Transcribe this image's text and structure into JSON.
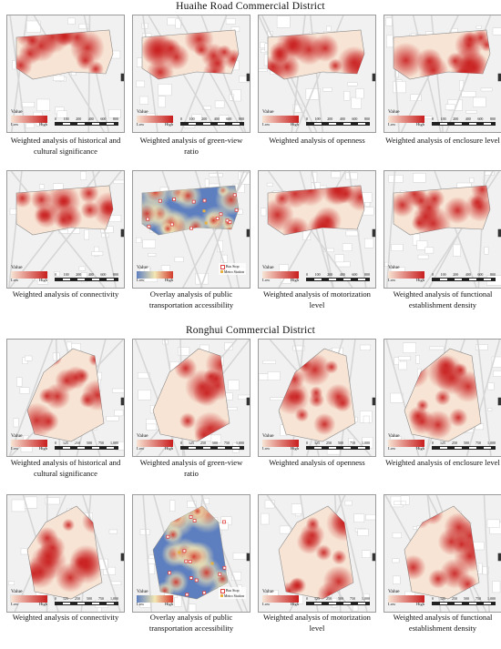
{
  "sections": [
    {
      "title": "Huaihe Road Commercial District"
    },
    {
      "title": "Ronghui Commercial District"
    }
  ],
  "panels": [
    {
      "caption_lines": [
        "Weighted analysis of historical and",
        "cultural significance"
      ],
      "scale": [
        "0",
        "100",
        "200",
        "400",
        "600",
        "800"
      ],
      "style": "heat"
    },
    {
      "caption_lines": [
        "Weighted analysis of green-view",
        "ratio"
      ],
      "scale": [
        "0",
        "100",
        "200",
        "400",
        "600",
        "800"
      ],
      "style": "heat"
    },
    {
      "caption_lines": [
        "Weighted analysis of openness"
      ],
      "scale": [
        "0",
        "100",
        "200",
        "400",
        "600",
        "800"
      ],
      "style": "heat"
    },
    {
      "caption_lines": [
        "Weighted analysis of enclosure level"
      ],
      "scale": [
        "0",
        "100",
        "200",
        "400",
        "600",
        "800"
      ],
      "style": "heat"
    },
    {
      "caption_lines": [
        "Weighted analysis of connectivity"
      ],
      "scale": [
        "0",
        "100",
        "200",
        "400",
        "600",
        "800"
      ],
      "style": "heat"
    },
    {
      "caption_lines": [
        "Overlay analysis of public",
        "transportation accessibility"
      ],
      "scale": [],
      "style": "overlay"
    },
    {
      "caption_lines": [
        "Weighted analysis of motorization",
        "level"
      ],
      "scale": [
        "0",
        "100",
        "200",
        "400",
        "600",
        "800"
      ],
      "style": "heat"
    },
    {
      "caption_lines": [
        "Weighted analysis of functional",
        "establishment density"
      ],
      "scale": [
        "0",
        "100",
        "200",
        "400",
        "600",
        "800"
      ],
      "style": "heat"
    },
    {
      "caption_lines": [
        "Weighted analysis of historical and",
        "cultural significance"
      ],
      "scale": [
        "0",
        "125",
        "250",
        "500",
        "750",
        "1,000"
      ],
      "style": "heat"
    },
    {
      "caption_lines": [
        "Weighted analysis of green-view",
        "ratio"
      ],
      "scale": [
        "0",
        "125",
        "250",
        "500",
        "750",
        "1,000"
      ],
      "style": "heat"
    },
    {
      "caption_lines": [
        "Weighted analysis of openness"
      ],
      "scale": [
        "0",
        "125",
        "250",
        "500",
        "750",
        "1,000"
      ],
      "style": "heat"
    },
    {
      "caption_lines": [
        "Weighted analysis of enclosure level"
      ],
      "scale": [
        "0",
        "125",
        "250",
        "500",
        "750",
        "1,000"
      ],
      "style": "heat"
    },
    {
      "caption_lines": [
        "Weighted analysis of connectivity"
      ],
      "scale": [
        "0",
        "125",
        "250",
        "500",
        "750",
        "1,000"
      ],
      "style": "heat"
    },
    {
      "caption_lines": [
        "Overlay analysis of public",
        "transportation accessibility"
      ],
      "scale": [],
      "style": "overlay"
    },
    {
      "caption_lines": [
        "Weighted analysis of motorization",
        "level"
      ],
      "scale": [
        "0",
        "125",
        "250",
        "500",
        "750",
        "1,000"
      ],
      "style": "heat"
    },
    {
      "caption_lines": [
        "Weighted analysis of functional",
        "establishment density"
      ],
      "scale": [
        "0",
        "125",
        "250",
        "500",
        "750",
        "1,000"
      ],
      "style": "heat"
    }
  ],
  "legend": {
    "title": "Value",
    "low": "Low",
    "high": "High"
  },
  "stops_legend": {
    "bus": "Bus Stop",
    "metro": "Metro Station"
  },
  "colors": {
    "heat_low": "#f7e4d4",
    "heat_high": "#c81d1d",
    "overlay_low": "#5d7fc0",
    "overlay_mid": "#f3e7b4",
    "overlay_high": "#d33a2c",
    "bus_stop": "#e04040",
    "metro": "#e8b040"
  }
}
